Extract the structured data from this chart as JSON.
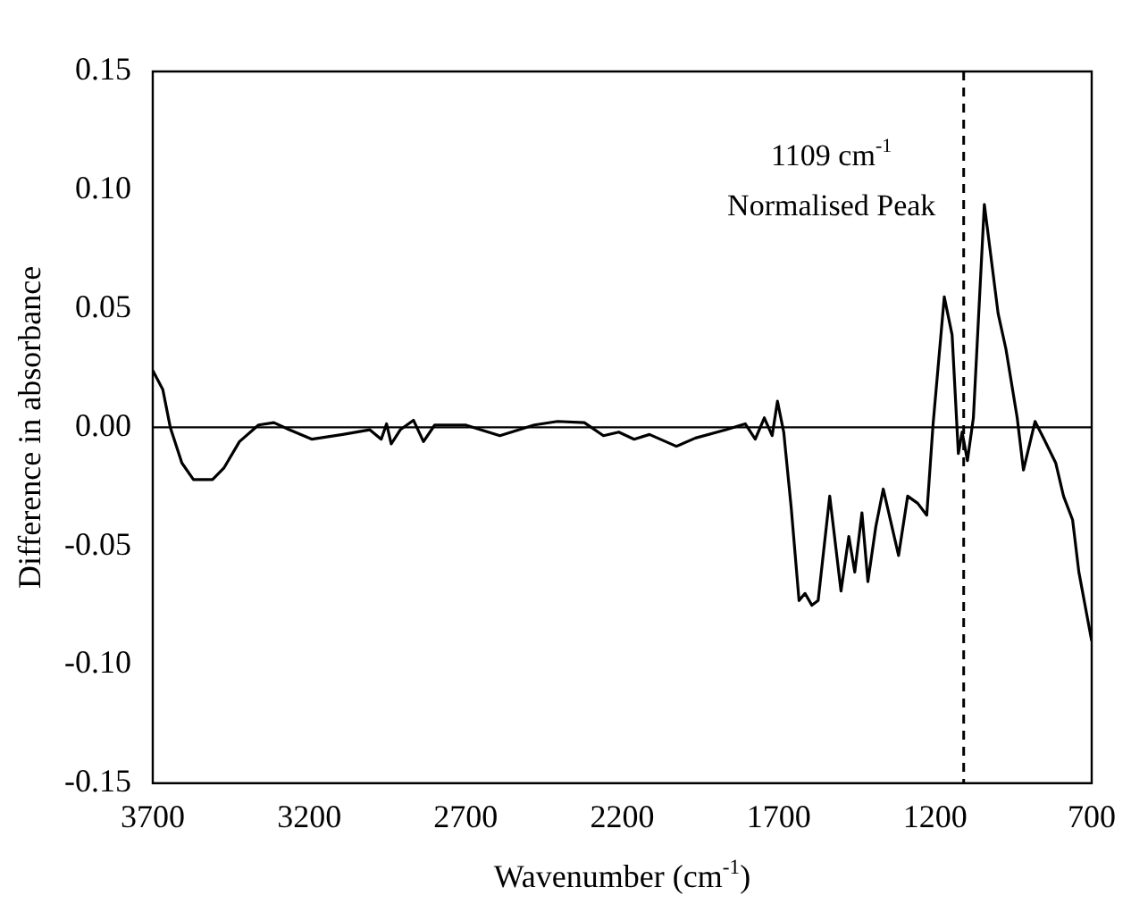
{
  "chart_data": {
    "type": "line",
    "xlabel": "Wavenumber (cm$^{-1}$)",
    "ylabel": "Difference in absorbance",
    "xlim": [
      3700,
      700
    ],
    "xticks": [
      3700,
      3200,
      2700,
      2200,
      1700,
      1200,
      700
    ],
    "ylim": [
      -0.15,
      0.15
    ],
    "yticks": [
      {
        "value": -0.15,
        "label": "-0.15"
      },
      {
        "value": -0.1,
        "label": "-0.10"
      },
      {
        "value": -0.05,
        "label": "-0.05"
      },
      {
        "value": 0,
        "label": "0.00"
      },
      {
        "value": 0.05,
        "label": "0.05"
      },
      {
        "value": 0.1,
        "label": "0.10"
      },
      {
        "value": 0.15,
        "label": "0.15"
      }
    ],
    "grid": false,
    "legend": false,
    "marker": "none",
    "line_style": "solid",
    "ref_lines": [
      {
        "axis": "x",
        "value": 1109,
        "line_style": "dashed",
        "color": "#000000"
      },
      {
        "axis": "y",
        "value": 0,
        "line_style": "solid",
        "color": "#000000"
      }
    ],
    "annotations": [
      "1109 cm$^{-1}$",
      "Normalised Peak"
    ],
    "series": [
      {
        "color": "#000000",
        "x": [
          3700,
          3668,
          3644,
          3607,
          3570,
          3509,
          3472,
          3423,
          3362,
          3313,
          3264,
          3191,
          3093,
          3007,
          2970,
          2953,
          2938,
          2909,
          2867,
          2835,
          2799,
          2701,
          2591,
          2481,
          2407,
          2321,
          2260,
          2211,
          2162,
          2113,
          2027,
          1966,
          1868,
          1807,
          1775,
          1746,
          1721,
          1704,
          1684,
          1660,
          1635,
          1616,
          1594,
          1574,
          1537,
          1501,
          1476,
          1457,
          1434,
          1415,
          1390,
          1366,
          1317,
          1288,
          1256,
          1227,
          1207,
          1171,
          1146,
          1126,
          1114,
          1097,
          1078,
          1043,
          999,
          974,
          938,
          918,
          881,
          852,
          815,
          790,
          761,
          741,
          700
        ],
        "values": [
          0.024,
          0.016,
          0,
          -0.015,
          -0.022,
          -0.022,
          -0.017,
          -0.006,
          0.001,
          0.002,
          -0.001,
          -0.005,
          -0.003,
          -0.001,
          -0.005,
          0.0015,
          -0.007,
          -0.001,
          0.003,
          -0.006,
          0.001,
          0.001,
          -0.0035,
          0.001,
          0.0025,
          0.002,
          -0.0035,
          -0.002,
          -0.005,
          -0.003,
          -0.008,
          -0.0045,
          -0.001,
          0.0015,
          -0.005,
          0.004,
          -0.0035,
          0.011,
          -0.002,
          -0.034,
          -0.073,
          -0.07,
          -0.075,
          -0.073,
          -0.029,
          -0.069,
          -0.046,
          -0.061,
          -0.036,
          -0.065,
          -0.042,
          -0.026,
          -0.054,
          -0.029,
          -0.032,
          -0.037,
          0.001,
          0.055,
          0.039,
          -0.011,
          -0.002,
          -0.014,
          0.004,
          0.094,
          0.048,
          0.033,
          0.004,
          -0.018,
          0.0025,
          -0.005,
          -0.015,
          -0.029,
          -0.039,
          -0.061,
          -0.09
        ]
      }
    ]
  }
}
